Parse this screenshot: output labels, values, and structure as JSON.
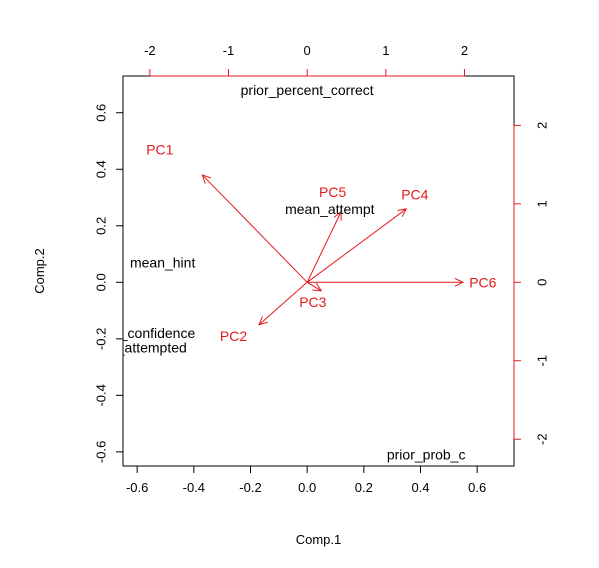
{
  "chart_data": {
    "type": "scatter",
    "subtype": "biplot",
    "xlabel": "Comp.1",
    "ylabel": "Comp.2",
    "xlim": [
      -0.65,
      0.73
    ],
    "ylim": [
      -0.65,
      0.73
    ],
    "x_ticks": [
      -0.6,
      -0.4,
      -0.2,
      0.0,
      0.2,
      0.4,
      0.6
    ],
    "y_ticks": [
      -0.6,
      -0.4,
      -0.2,
      0.0,
      0.2,
      0.4,
      0.6
    ],
    "x_tick_labels": [
      "-0.6",
      "-0.4",
      "-0.2",
      "0.0",
      "0.2",
      "0.4",
      "0.6"
    ],
    "y_tick_labels": [
      "-0.6",
      "-0.4",
      "-0.2",
      "0.0",
      "0.2",
      "0.4",
      "0.6"
    ],
    "top_axis": {
      "ticks": [
        -2,
        -1,
        0,
        1,
        2
      ],
      "labels": [
        "-2",
        "-1",
        "0",
        "1",
        "2"
      ],
      "scale": 0.2776,
      "color": "#e41a1c"
    },
    "right_axis": {
      "ticks": [
        -2,
        -1,
        0,
        1,
        2
      ],
      "labels": [
        "-2",
        "-1",
        "0",
        "1",
        "2"
      ],
      "scale": 0.2776,
      "color": "#e41a1c"
    },
    "observations": [
      {
        "label": "prior_percent_correct",
        "x": 0.0,
        "y": 0.68
      },
      {
        "label": "mean_attempt",
        "x": 0.08,
        "y": 0.26
      },
      {
        "label": "mean_hint",
        "x": -0.51,
        "y": 0.07
      },
      {
        "label": "mean_confidence",
        "x": -0.59,
        "y": -0.18
      },
      {
        "label": "problems_attempted",
        "x": -0.65,
        "y": -0.23
      },
      {
        "label": "prior_prob_c",
        "x": 0.42,
        "y": -0.61
      }
    ],
    "loadings": [
      {
        "name": "PC1",
        "x": -0.37,
        "y": 0.38,
        "label_x": -0.52,
        "label_y": 0.47
      },
      {
        "name": "PC2",
        "x": -0.17,
        "y": -0.15,
        "label_x": -0.26,
        "label_y": -0.19
      },
      {
        "name": "PC3",
        "x": 0.05,
        "y": -0.03,
        "label_x": 0.02,
        "label_y": -0.07
      },
      {
        "name": "PC4",
        "x": 0.35,
        "y": 0.26,
        "label_x": 0.38,
        "label_y": 0.31
      },
      {
        "name": "PC5",
        "x": 0.12,
        "y": 0.25,
        "label_x": 0.09,
        "label_y": 0.32
      },
      {
        "name": "PC6",
        "x": 0.55,
        "y": 0.0,
        "label_x": 0.62,
        "label_y": 0.0
      }
    ],
    "colors": {
      "observations": "#000000",
      "loadings": "#e41a1c"
    },
    "grid": false
  }
}
